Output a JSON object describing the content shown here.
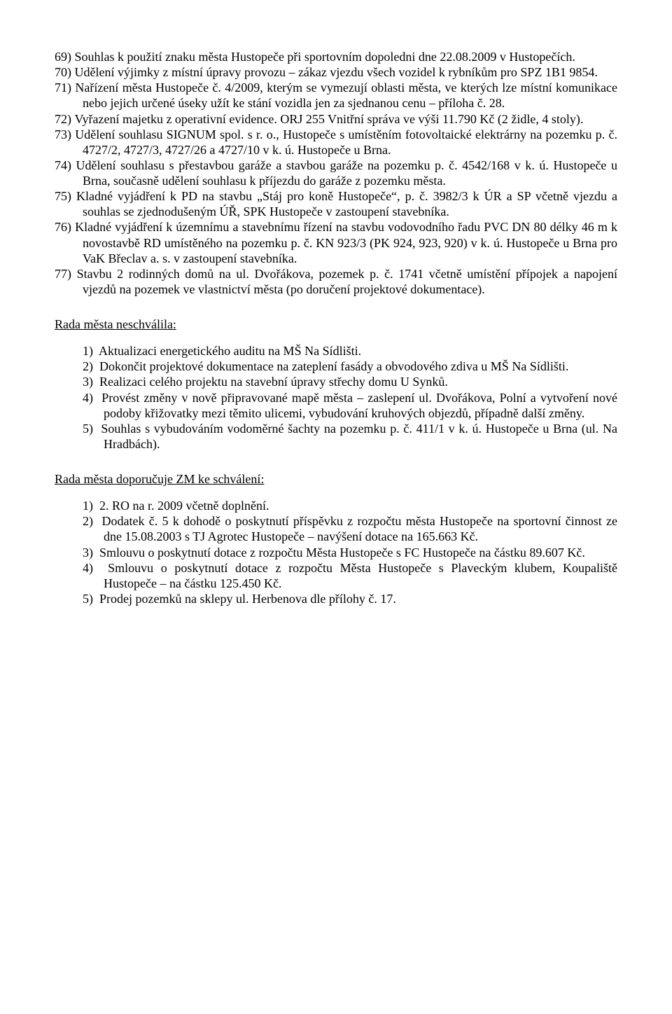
{
  "list1": [
    "69) Souhlas k použití znaku města Hustopeče při sportovním dopoledni dne 22.08.2009 v Hustopečích.",
    "70) Udělení výjimky z místní úpravy provozu – zákaz vjezdu všech vozidel k rybníkům pro SPZ 1B1 9854.",
    "71) Nařízení města Hustopeče č. 4/2009, kterým se vymezují oblasti města, ve kterých lze místní komunikace nebo jejich určené úseky užít ke stání vozidla jen za sjednanou cenu – příloha č. 28.",
    "72) Vyřazení majetku z operativní evidence. ORJ 255 Vnitřní správa ve výši 11.790 Kč (2 židle, 4 stoly).",
    "73) Udělení souhlasu SIGNUM spol. s r. o., Hustopeče s umístěním fotovoltaické elektrárny na pozemku p. č. 4727/2, 4727/3, 4727/26 a 4727/10 v k. ú. Hustopeče u Brna.",
    "74) Udělení souhlasu s přestavbou garáže a stavbou garáže na pozemku p. č. 4542/168 v k. ú. Hustopeče u Brna, současně udělení souhlasu k příjezdu do garáže z pozemku města.",
    "75) Kladné vyjádření k PD na stavbu „Stáj pro koně Hustopeče“, p. č. 3982/3 k ÚR a SP včetně vjezdu a souhlas se zjednodušeným ÚŘ, SPK Hustopeče v zastoupení stavebníka.",
    "76) Kladné vyjádření k územnímu a stavebnímu řízení na stavbu vodovodního řadu PVC DN 80 délky 46 m k novostavbě RD umístěného na pozemku p. č. KN 923/3 (PK 924, 923, 920) v k. ú. Hustopeče u Brna pro VaK Břeclav a. s. v zastoupení stavebníka.",
    "77) Stavbu 2 rodinných domů na ul. Dvořákova, pozemek p. č. 1741 včetně umístění přípojek a napojení vjezdů na pozemek ve vlastnictví města (po doručení projektové dokumentace)."
  ],
  "heading2": "Rada města neschválila:",
  "list2": [
    "1)  Aktualizaci energetického auditu na MŠ Na Sídlišti.",
    "2)  Dokončit projektové dokumentace na zateplení fasády a obvodového zdiva u MŠ Na Sídlišti.",
    "3)  Realizaci celého projektu na stavební úpravy střechy domu U Synků.",
    "4)  Provést změny v nově připravované mapě města – zaslepení ul. Dvořákova, Polní a vytvoření nové podoby křižovatky mezi těmito ulicemi, vybudování kruhových objezdů, případně další změny.",
    "5)  Souhlas s vybudováním vodoměrné šachty na pozemku p. č. 411/1 v k. ú. Hustopeče u Brna (ul. Na Hradbách)."
  ],
  "heading3": "Rada města doporučuje ZM ke schválení:",
  "list3": [
    "1)  2. RO na r. 2009 včetně doplnění.",
    "2)  Dodatek č. 5 k dohodě o poskytnutí příspěvku z rozpočtu města Hustopeče na sportovní činnost ze dne 15.08.2003 s TJ Agrotec Hustopeče – navýšení dotace na 165.663 Kč.",
    "3)  Smlouvu o poskytnutí dotace z rozpočtu Města Hustopeče s FC Hustopeče na částku 89.607 Kč.",
    "4)  Smlouvu o poskytnutí dotace z rozpočtu Města Hustopeče s Plaveckým klubem, Koupaliště Hustopeče – na částku 125.450 Kč.",
    "5)  Prodej pozemků na sklepy ul. Herbenova dle přílohy č. 17."
  ]
}
